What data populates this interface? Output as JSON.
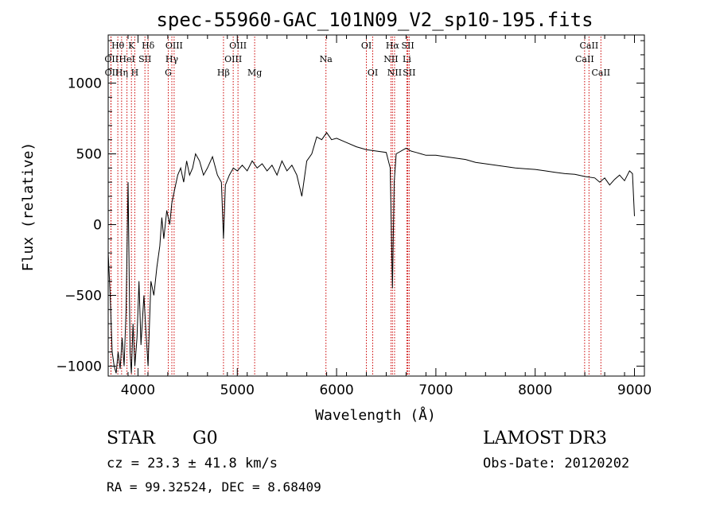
{
  "chart_data": {
    "type": "line",
    "title": "spec-55960-GAC_101N09_V2_sp10-195.fits",
    "xlabel": "Wavelength (Å)",
    "ylabel": "Flux (relative)",
    "xlim": [
      3700,
      9100
    ],
    "ylim": [
      -1070,
      1340
    ],
    "xticks": [
      4000,
      5000,
      6000,
      7000,
      8000,
      9000
    ],
    "yticks": [
      -1000,
      -500,
      0,
      500,
      1000
    ],
    "grid": false,
    "series": [
      {
        "name": "spectrum",
        "x": [
          3700,
          3720,
          3740,
          3760,
          3780,
          3800,
          3820,
          3840,
          3860,
          3880,
          3900,
          3920,
          3933,
          3950,
          3968,
          3990,
          4010,
          4030,
          4060,
          4080,
          4101,
          4130,
          4160,
          4190,
          4220,
          4240,
          4260,
          4290,
          4320,
          4340,
          4370,
          4400,
          4430,
          4460,
          4490,
          4520,
          4550,
          4580,
          4620,
          4660,
          4700,
          4750,
          4800,
          4840,
          4861,
          4880,
          4920,
          4960,
          5000,
          5050,
          5100,
          5150,
          5200,
          5250,
          5300,
          5350,
          5400,
          5450,
          5500,
          5550,
          5600,
          5650,
          5700,
          5750,
          5800,
          5850,
          5900,
          5950,
          6000,
          6100,
          6200,
          6300,
          6400,
          6500,
          6540,
          6563,
          6580,
          6600,
          6700,
          6750,
          6800,
          6850,
          6900,
          7000,
          7100,
          7200,
          7300,
          7400,
          7500,
          7600,
          7700,
          7800,
          7900,
          8000,
          8100,
          8200,
          8300,
          8400,
          8500,
          8600,
          8650,
          8700,
          8750,
          8800,
          8850,
          8900,
          8950,
          8980,
          9000
        ],
        "y": [
          -200,
          -500,
          -900,
          -1000,
          -1050,
          -900,
          -1020,
          -800,
          -1000,
          -600,
          300,
          -900,
          -1050,
          -700,
          -1000,
          -800,
          -400,
          -850,
          -500,
          -750,
          -1000,
          -400,
          -500,
          -300,
          -150,
          50,
          -100,
          100,
          0,
          150,
          250,
          350,
          400,
          300,
          450,
          350,
          400,
          500,
          450,
          350,
          400,
          480,
          350,
          300,
          -100,
          280,
          350,
          400,
          380,
          420,
          380,
          450,
          400,
          430,
          380,
          420,
          350,
          450,
          380,
          420,
          350,
          200,
          450,
          500,
          620,
          600,
          650,
          600,
          610,
          580,
          550,
          530,
          520,
          510,
          400,
          -450,
          300,
          500,
          540,
          520,
          510,
          500,
          490,
          490,
          480,
          470,
          460,
          440,
          430,
          420,
          410,
          400,
          395,
          390,
          380,
          370,
          360,
          355,
          340,
          330,
          300,
          330,
          280,
          320,
          350,
          310,
          380,
          360,
          60
        ]
      }
    ],
    "lines": [
      {
        "label": "Hθ",
        "wl": 3797,
        "row": 1,
        "align": "left"
      },
      {
        "label": "OII",
        "wl": 3727,
        "row": 2,
        "align": "left"
      },
      {
        "label": "OII",
        "wl": 3729,
        "row": 3,
        "align": "left"
      },
      {
        "label": "HeI",
        "wl": 3889,
        "row": 2,
        "align": "center"
      },
      {
        "label": "Hη",
        "wl": 3835,
        "row": 3,
        "align": "center"
      },
      {
        "label": "K",
        "wl": 3934,
        "row": 1,
        "align": "center"
      },
      {
        "label": "H",
        "wl": 3968,
        "row": 3,
        "align": "center"
      },
      {
        "label": "SII",
        "wl": 4070,
        "row": 2,
        "align": "center"
      },
      {
        "label": "Hδ",
        "wl": 4102,
        "row": 1,
        "align": "center"
      },
      {
        "label": "OIII",
        "wl": 4364,
        "row": 1,
        "align": "center"
      },
      {
        "label": "Hγ",
        "wl": 4341,
        "row": 2,
        "align": "center"
      },
      {
        "label": "G",
        "wl": 4305,
        "row": 3,
        "align": "center"
      },
      {
        "label": "Hβ",
        "wl": 4861,
        "row": 3,
        "align": "center"
      },
      {
        "label": "OIII",
        "wl": 5007,
        "row": 1,
        "align": "center"
      },
      {
        "label": "OIII",
        "wl": 4959,
        "row": 2,
        "align": "center"
      },
      {
        "label": "Mg",
        "wl": 5175,
        "row": 3,
        "align": "center"
      },
      {
        "label": "Na",
        "wl": 5893,
        "row": 2,
        "align": "center"
      },
      {
        "label": "OI",
        "wl": 6300,
        "row": 1,
        "align": "center"
      },
      {
        "label": "OI",
        "wl": 6364,
        "row": 3,
        "align": "center"
      },
      {
        "label": "Hα",
        "wl": 6563,
        "row": 1,
        "align": "center"
      },
      {
        "label": "NII",
        "wl": 6548,
        "row": 2,
        "align": "center"
      },
      {
        "label": "NII",
        "wl": 6584,
        "row": 3,
        "align": "center"
      },
      {
        "label": "SII",
        "wl": 6717,
        "row": 1,
        "align": "center"
      },
      {
        "label": "Li",
        "wl": 6708,
        "row": 2,
        "align": "center"
      },
      {
        "label": "SII",
        "wl": 6731,
        "row": 3,
        "align": "center"
      },
      {
        "label": "CaII",
        "wl": 8542,
        "row": 1,
        "align": "center"
      },
      {
        "label": "CaII",
        "wl": 8498,
        "row": 2,
        "align": "center"
      },
      {
        "label": "CaII",
        "wl": 8662,
        "row": 3,
        "align": "center"
      }
    ]
  },
  "info": {
    "object_class": "STAR",
    "subclass": "G0",
    "survey": "LAMOST DR3",
    "redshift_line": "cz = 23.3 ± 41.8 km/s",
    "obs_date": "Obs-Date: 20120202",
    "coords": "RA =  99.32524, DEC =   8.68409"
  },
  "colors": {
    "line_marker": "#cc0000",
    "spectrum": "#000000",
    "axis": "#000000"
  }
}
